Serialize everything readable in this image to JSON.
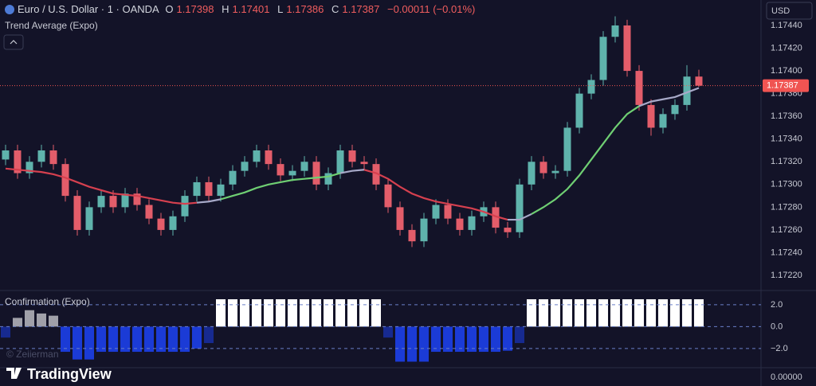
{
  "header": {
    "symbol": "Euro / U.S. Dollar · 1 · OANDA",
    "ohlc": [
      {
        "label": "O",
        "value": 1.17398
      },
      {
        "label": "H",
        "value": 1.17401
      },
      {
        "label": "L",
        "value": 1.17386
      },
      {
        "label": "C",
        "value": 1.17387
      }
    ],
    "change": "−0.00011 (−0.01%)",
    "currency": "USD"
  },
  "footer": {
    "brand": "TradingView",
    "watermark": "© Zeiierman",
    "bottom_axis_label": "0.00000"
  },
  "chart_data": [
    {
      "type": "candlestick",
      "open": [
        1.17322,
        1.1733,
        1.1731,
        1.1732,
        1.1733,
        1.17318,
        1.1729,
        1.1726,
        1.1728,
        1.1729,
        1.1728,
        1.17292,
        1.17282,
        1.1727,
        1.1726,
        1.17272,
        1.1729,
        1.17302,
        1.1729,
        1.173,
        1.17312,
        1.1732,
        1.1733,
        1.17318,
        1.17308,
        1.17312,
        1.1732,
        1.173,
        1.1731,
        1.1733,
        1.1732,
        1.17318,
        1.173,
        1.1728,
        1.1726,
        1.1725,
        1.1727,
        1.17282,
        1.1727,
        1.1726,
        1.17272,
        1.1728,
        1.17262,
        1.17258,
        1.173,
        1.1732,
        1.1731,
        1.17312,
        1.1735,
        1.1738,
        1.17392,
        1.1743,
        1.1744,
        1.174,
        1.1737,
        1.1735,
        1.17362,
        1.1737,
        1.17395
      ],
      "high": [
        1.17335,
        1.17335,
        1.17325,
        1.17335,
        1.17335,
        1.17323,
        1.17295,
        1.17285,
        1.17295,
        1.17295,
        1.17297,
        1.17297,
        1.17287,
        1.17275,
        1.17277,
        1.17295,
        1.17307,
        1.17307,
        1.17305,
        1.17317,
        1.17325,
        1.17335,
        1.17335,
        1.17323,
        1.17317,
        1.17325,
        1.17325,
        1.17315,
        1.17335,
        1.17335,
        1.17325,
        1.17323,
        1.17305,
        1.17285,
        1.17265,
        1.17275,
        1.17287,
        1.17287,
        1.17275,
        1.17277,
        1.17285,
        1.17285,
        1.17267,
        1.17305,
        1.17325,
        1.17325,
        1.17317,
        1.17355,
        1.17385,
        1.17397,
        1.17435,
        1.17448,
        1.17445,
        1.17405,
        1.17375,
        1.17367,
        1.17375,
        1.17405,
        1.17401
      ],
      "low": [
        1.17317,
        1.17305,
        1.17305,
        1.17315,
        1.17313,
        1.17285,
        1.17255,
        1.17255,
        1.17275,
        1.17275,
        1.17275,
        1.17277,
        1.17265,
        1.17255,
        1.17255,
        1.17267,
        1.17285,
        1.17285,
        1.17285,
        1.17295,
        1.17307,
        1.17315,
        1.17313,
        1.17303,
        1.17303,
        1.17307,
        1.17295,
        1.17295,
        1.17305,
        1.17315,
        1.17313,
        1.17295,
        1.17275,
        1.17255,
        1.17245,
        1.17245,
        1.17265,
        1.17265,
        1.17255,
        1.17255,
        1.17267,
        1.17257,
        1.17253,
        1.17253,
        1.17295,
        1.17305,
        1.17305,
        1.17307,
        1.17345,
        1.17375,
        1.17387,
        1.17425,
        1.17395,
        1.17365,
        1.17343,
        1.17345,
        1.17357,
        1.17365,
        1.17386
      ],
      "close": [
        1.1733,
        1.1731,
        1.1732,
        1.1733,
        1.17318,
        1.1729,
        1.1726,
        1.1728,
        1.1729,
        1.1728,
        1.17292,
        1.17282,
        1.1727,
        1.1726,
        1.17272,
        1.1729,
        1.17302,
        1.1729,
        1.173,
        1.17312,
        1.1732,
        1.1733,
        1.17318,
        1.17308,
        1.17312,
        1.1732,
        1.173,
        1.1731,
        1.1733,
        1.1732,
        1.17318,
        1.173,
        1.1728,
        1.1726,
        1.1725,
        1.1727,
        1.17282,
        1.1727,
        1.1726,
        1.17272,
        1.1728,
        1.17262,
        1.17258,
        1.173,
        1.1732,
        1.1731,
        1.17312,
        1.1735,
        1.1738,
        1.17392,
        1.1743,
        1.1744,
        1.174,
        1.1737,
        1.1735,
        1.17362,
        1.1737,
        1.17395,
        1.17387
      ],
      "up_color": "#5fb3ac",
      "down_color": "#e35d6a",
      "series": [
        {
          "name": "Trend Average (Expo)",
          "values": [
            1.17314,
            1.17313,
            1.17312,
            1.17311,
            1.17309,
            1.17306,
            1.17302,
            1.17298,
            1.17295,
            1.17292,
            1.17291,
            1.1729,
            1.17288,
            1.17286,
            1.17284,
            1.17283,
            1.17284,
            1.17285,
            1.17287,
            1.1729,
            1.17293,
            1.17297,
            1.173,
            1.17302,
            1.17304,
            1.17305,
            1.17306,
            1.17307,
            1.1731,
            1.17312,
            1.17313,
            1.1731,
            1.17305,
            1.17298,
            1.17292,
            1.17288,
            1.17285,
            1.17283,
            1.17281,
            1.17279,
            1.17276,
            1.17272,
            1.17269,
            1.17269,
            1.17274,
            1.1728,
            1.17287,
            1.17296,
            1.17308,
            1.17322,
            1.17336,
            1.1735,
            1.17362,
            1.17369,
            1.17373,
            1.17375,
            1.17377,
            1.17381,
            1.17385
          ],
          "colors": [
            "#d6404f",
            "#d6404f",
            "#d6404f",
            "#d6404f",
            "#d6404f",
            "#d6404f",
            "#d6404f",
            "#d6404f",
            "#d6404f",
            "#d6404f",
            "#d6404f",
            "#d6404f",
            "#d6404f",
            "#d6404f",
            "#d6404f",
            "#d6404f",
            "#d6404f",
            "#a7a9c8",
            "#a7a9c8",
            "#6fcf73",
            "#6fcf73",
            "#6fcf73",
            "#6fcf73",
            "#6fcf73",
            "#6fcf73",
            "#6fcf73",
            "#6fcf73",
            "#6fcf73",
            "#6fcf73",
            "#a7a9c8",
            "#a7a9c8",
            "#d6404f",
            "#d6404f",
            "#d6404f",
            "#d6404f",
            "#d6404f",
            "#d6404f",
            "#d6404f",
            "#d6404f",
            "#d6404f",
            "#d6404f",
            "#d6404f",
            "#d6404f",
            "#a7a9c8",
            "#a7a9c8",
            "#6fcf73",
            "#6fcf73",
            "#6fcf73",
            "#6fcf73",
            "#6fcf73",
            "#6fcf73",
            "#6fcf73",
            "#6fcf73",
            "#6fcf73",
            "#a7a9c8",
            "#a7a9c8",
            "#a7a9c8",
            "#a7a9c8",
            "#a7a9c8"
          ]
        }
      ],
      "last_price": 1.17387,
      "last_price_color": "#f05452",
      "ylim": [
        1.172067,
        1.174624
      ],
      "yticks": [
        {
          "value": 1.1744,
          "label": "1.17440"
        },
        {
          "value": 1.1742,
          "label": "1.17420"
        },
        {
          "value": 1.174,
          "label": "1.17400"
        },
        {
          "value": 1.1738,
          "label": "1.17380"
        },
        {
          "value": 1.1736,
          "label": "1.17360"
        },
        {
          "value": 1.1734,
          "label": "1.17340"
        },
        {
          "value": 1.1732,
          "label": "1.17320"
        },
        {
          "value": 1.173,
          "label": "1.17300"
        },
        {
          "value": 1.1728,
          "label": "1.17280"
        },
        {
          "value": 1.1726,
          "label": "1.17260"
        },
        {
          "value": 1.1724,
          "label": "1.17240"
        },
        {
          "value": 1.1722,
          "label": "1.17220"
        }
      ],
      "grid": false
    },
    {
      "type": "bar",
      "title": "Confirmation (Expo)",
      "values": [
        -1.0,
        0.8,
        1.5,
        1.2,
        1.0,
        -2.3,
        -3.0,
        -3.0,
        -2.3,
        -2.3,
        -2.3,
        -2.3,
        -2.3,
        -2.3,
        -2.3,
        -2.3,
        -2.0,
        -1.5,
        2.5,
        2.5,
        2.5,
        2.5,
        2.5,
        2.5,
        2.5,
        2.5,
        2.5,
        2.5,
        2.5,
        2.5,
        2.5,
        2.5,
        -1.0,
        -3.2,
        -3.2,
        -3.2,
        -2.3,
        -2.3,
        -2.3,
        -2.3,
        -2.3,
        -2.3,
        -2.2,
        -1.5,
        2.5,
        2.5,
        2.5,
        2.5,
        2.5,
        2.5,
        2.5,
        2.5,
        2.5,
        2.5,
        2.5,
        2.5,
        2.5,
        2.5,
        2.5
      ],
      "pos_color": "#ffffff",
      "neg_color": "#1b3bd6",
      "ylim": [
        -3.75,
        3.3
      ],
      "yticks": [
        {
          "value": 2,
          "label": "2.0"
        },
        {
          "value": 0,
          "label": "0.0"
        },
        {
          "value": -2,
          "label": "−2.0"
        }
      ],
      "grid": true
    }
  ]
}
